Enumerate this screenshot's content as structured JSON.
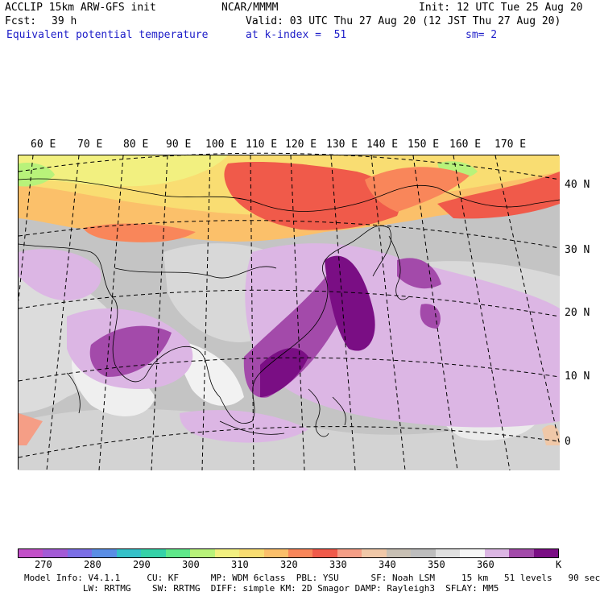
{
  "header": {
    "model_line": "ACCLIP 15km ARW-GFS init",
    "org": "NCAR/MMMM",
    "init": "Init: 12 UTC Tue 25 Aug 20",
    "fcst_label": "Fcst:",
    "fcst_value": "39 h",
    "valid": "Valid: 03 UTC Thu 27 Aug 20 (12 JST Thu 27 Aug 20)",
    "field": "Equivalent potential temperature",
    "level": "at k-index =  51",
    "smooth": "sm= 2"
  },
  "map": {
    "lon_labels": [
      "60 E",
      "70 E",
      "80 E",
      "90 E",
      "100 E",
      "110 E",
      "120 E",
      "130 E",
      "140 E",
      "150 E",
      "160 E",
      "170 E"
    ],
    "lat_labels": [
      "40 N",
      "30 N",
      "20 N",
      "10 N",
      "0"
    ]
  },
  "colorbar": {
    "colors": [
      "#c24fc8",
      "#a35ad6",
      "#7b6ee6",
      "#5a8ee6",
      "#35c1c9",
      "#35d2a8",
      "#5fe88a",
      "#b8f27a",
      "#f2f080",
      "#f9dd72",
      "#fbbf6a",
      "#f9865a",
      "#f05a4a",
      "#f59e86",
      "#f0c8a8",
      "#c8c0b4",
      "#bdbdbd",
      "#e0e0e0",
      "#f7f7f7",
      "#dcb6e4",
      "#a34aaa",
      "#7a0e84"
    ],
    "tick_labels": [
      "270",
      "280",
      "290",
      "300",
      "310",
      "320",
      "330",
      "340",
      "350",
      "360"
    ],
    "unit": "K"
  },
  "footer": {
    "line1": "Model Info: V4.1.1     CU: KF      MP: WDM 6class  PBL: YSU      SF: Noah LSM     15 km   51 levels   90 sec",
    "line2": "           LW: RRTMG    SW: RRTMG  DIFF: simple KM: 2D Smagor DAMP: Rayleigh3  SFLAY: MM5"
  }
}
